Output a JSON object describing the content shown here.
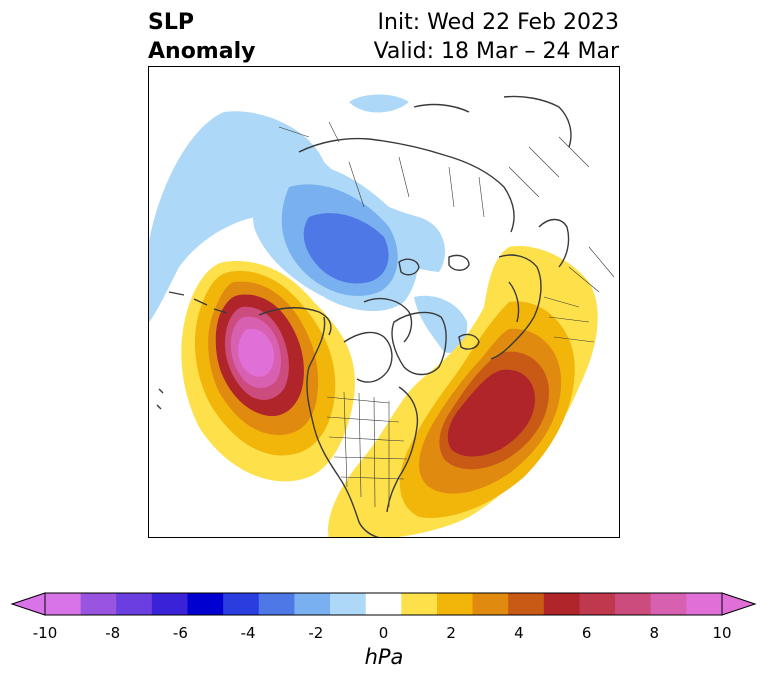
{
  "header": {
    "title_line1": "SLP",
    "title_line2": "Anomaly",
    "init_text": "Init: Wed 22 Feb 2023",
    "valid_text": "Valid: 18 Mar – 24 Mar"
  },
  "colorbar": {
    "unit_label": "hPa",
    "tick_labels": [
      "-10",
      "-8",
      "-6",
      "-4",
      "-2",
      "0",
      "2",
      "4",
      "6",
      "8",
      "10"
    ],
    "extend": "both",
    "colors": [
      "#d873e8",
      "#9a55e0",
      "#6a3ee0",
      "#3a22d8",
      "#0000d0",
      "#2a3ee0",
      "#4e78e6",
      "#78b0f0",
      "#aed8f8",
      "#ffffff",
      "#fde04a",
      "#f2b50a",
      "#e08a10",
      "#c85a16",
      "#b0252a",
      "#c0384e",
      "#cc4c7e",
      "#d860b0",
      "#e070d8"
    ],
    "under_color": "#d873e8",
    "over_color": "#e070d8"
  },
  "map": {
    "projection": "north-polar-stereographic",
    "features": [
      "coastlines",
      "country-borders",
      "us-state-borders"
    ],
    "anomaly_centers": [
      {
        "name": "pacific-high",
        "peak": "above 10 hPa"
      },
      {
        "name": "atlantic-high",
        "peak": "6 to 8 hPa"
      },
      {
        "name": "siberian-low",
        "peak": "-4 to -6 hPa"
      }
    ]
  }
}
